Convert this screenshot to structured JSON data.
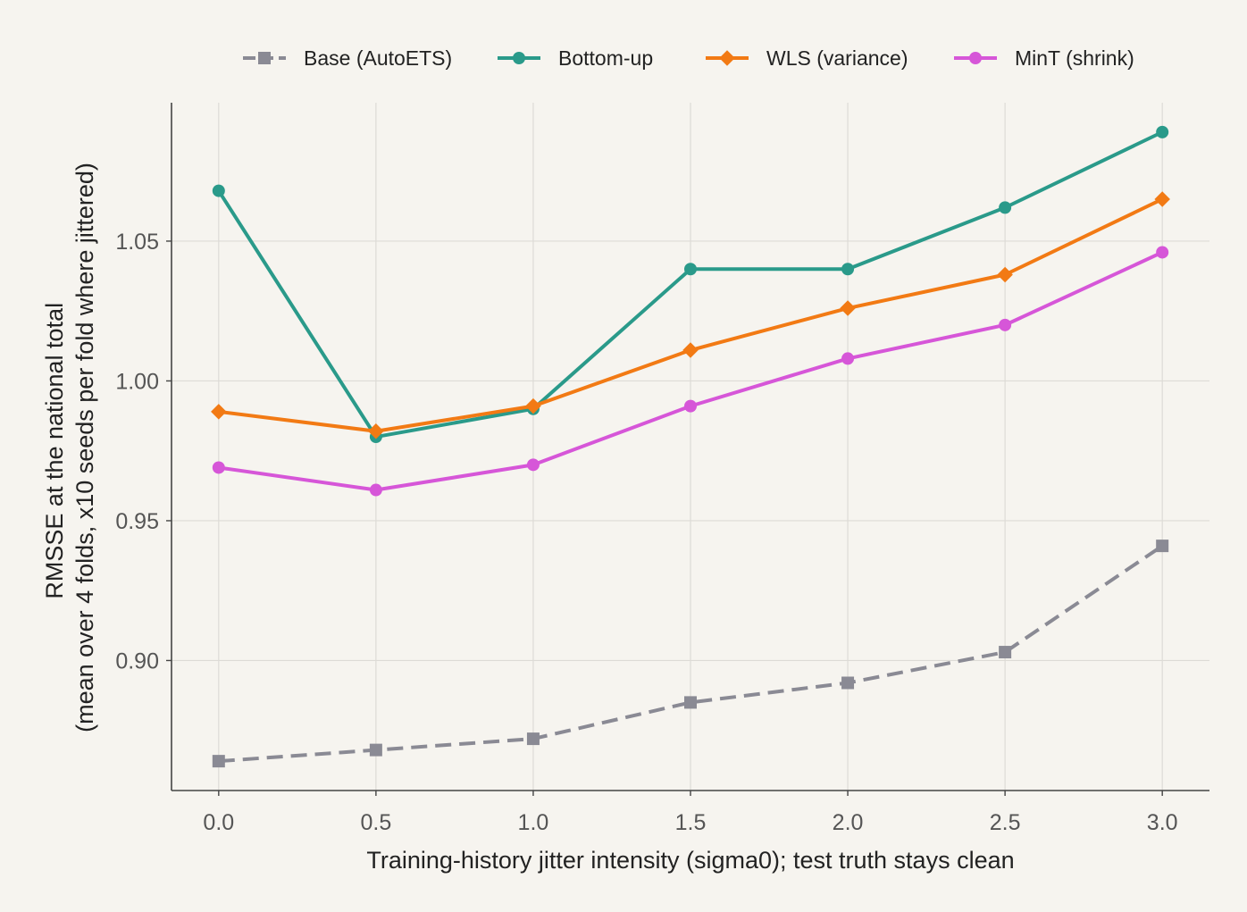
{
  "chart_data": {
    "type": "line",
    "title": "",
    "xlabel": "Training-history jitter intensity (sigma0); test truth stays clean",
    "ylabel_lines": [
      "RMSSE at the national total",
      "(mean over 4 folds, x10 seeds per fold where jittered)"
    ],
    "x": [
      0.0,
      0.5,
      1.0,
      1.5,
      2.0,
      2.5,
      3.0
    ],
    "x_tick_labels": [
      "0.0",
      "0.5",
      "1.0",
      "1.5",
      "2.0",
      "2.5",
      "3.0"
    ],
    "xlim": [
      -0.15,
      3.15
    ],
    "y_ticks": [
      0.9,
      0.95,
      1.0,
      1.05
    ],
    "y_tick_labels": [
      "0.90",
      "0.95",
      "1.00",
      "1.05"
    ],
    "ylim": [
      0.8535,
      1.0995
    ],
    "grid": true,
    "legend_position": "top",
    "series": [
      {
        "name": "Base (AutoETS)",
        "color": "#8a8a94",
        "marker": "square",
        "dashed": true,
        "values": [
          0.864,
          0.868,
          0.872,
          0.885,
          0.892,
          0.903,
          0.941
        ]
      },
      {
        "name": "Bottom-up",
        "color": "#2a9a8a",
        "marker": "circle",
        "dashed": false,
        "values": [
          1.068,
          0.98,
          0.99,
          1.04,
          1.04,
          1.062,
          1.089
        ]
      },
      {
        "name": "WLS (variance)",
        "color": "#f27a14",
        "marker": "diamond",
        "dashed": false,
        "values": [
          0.989,
          0.982,
          0.991,
          1.011,
          1.026,
          1.038,
          1.065
        ]
      },
      {
        "name": "MinT (shrink)",
        "color": "#d656d8",
        "marker": "circle",
        "dashed": false,
        "values": [
          0.969,
          0.961,
          0.97,
          0.991,
          1.008,
          1.02,
          1.046
        ]
      }
    ]
  }
}
